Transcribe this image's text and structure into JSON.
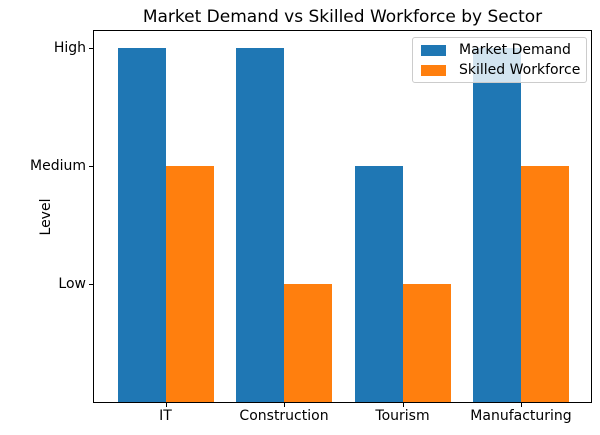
{
  "chart_data": {
    "type": "bar",
    "title": "Market Demand vs Skilled Workforce by Sector",
    "xlabel": "",
    "ylabel": "Level",
    "categories": [
      "IT",
      "Construction",
      "Tourism",
      "Manufacturing"
    ],
    "series": [
      {
        "name": "Market Demand",
        "color": "#1f77b4",
        "values": [
          "High",
          "High",
          "Medium",
          "High"
        ]
      },
      {
        "name": "Skilled Workforce",
        "color": "#ff7f0e",
        "values": [
          "Medium",
          "Low",
          "Low",
          "Medium"
        ]
      }
    ],
    "yticks": [
      {
        "label": "Low",
        "value": 1
      },
      {
        "label": "Medium",
        "value": 2
      },
      {
        "label": "High",
        "value": 3
      }
    ],
    "ylim": [
      0,
      3.15
    ],
    "bar_width": 0.4,
    "grid": false,
    "legend_position": "upper right",
    "colors": {
      "spine": "#000000",
      "legend_border": "#cccccc",
      "background": "#ffffff"
    }
  }
}
